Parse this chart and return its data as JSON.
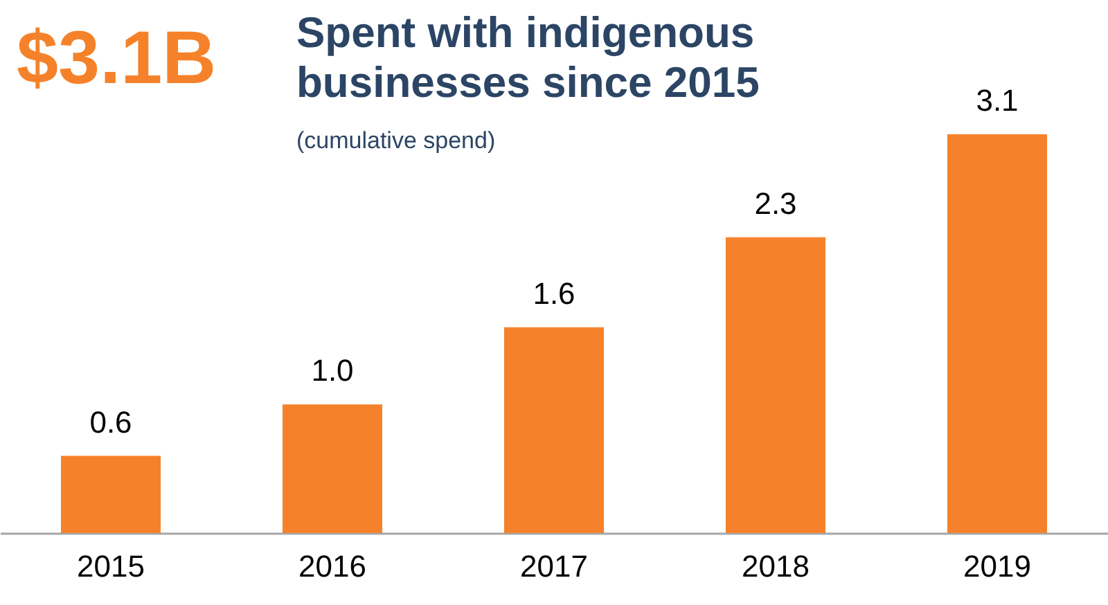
{
  "chart_data": {
    "type": "bar",
    "title": "Spent with indigenous businesses since 2015",
    "subtitle": "(cumulative spend)",
    "annotations": [
      "$3.1B"
    ],
    "categories": [
      "2015",
      "2016",
      "2017",
      "2018",
      "2019"
    ],
    "values": [
      0.6,
      1.0,
      1.6,
      2.3,
      3.1
    ],
    "color": "#f5822a",
    "value_labels": [
      "0.6",
      "1.0",
      "1.6",
      "2.3",
      "3.1"
    ]
  }
}
